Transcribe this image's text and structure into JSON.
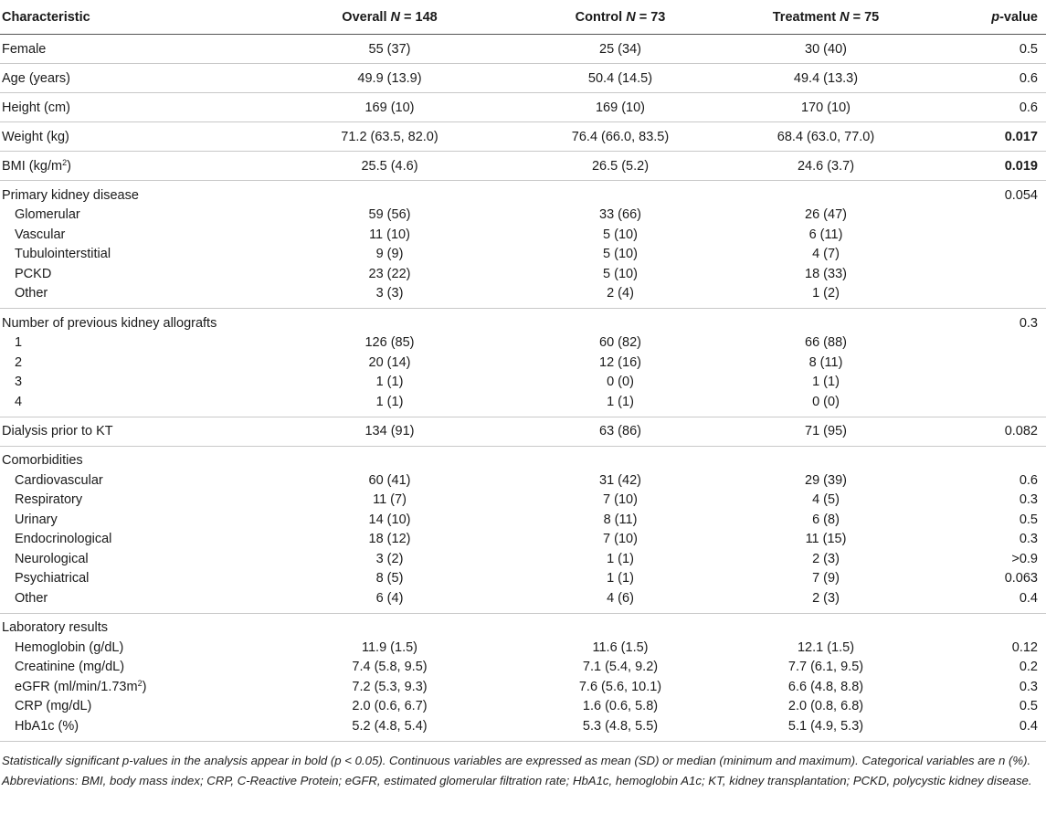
{
  "header": {
    "characteristic": "Characteristic",
    "overall_label": "Overall ",
    "overall_n": "N",
    "overall_count": " = 148",
    "control_label": "Control ",
    "control_n": "N",
    "control_count": " = 73",
    "treatment_label": "Treatment ",
    "treatment_n": "N",
    "treatment_count": " = 75",
    "p_italic": "p",
    "p_rest": "-value"
  },
  "basic_rows": [
    {
      "label": "Female",
      "overall": "55 (37)",
      "control": "25 (34)",
      "treatment": "30 (40)",
      "p": "0.5",
      "bold": false
    },
    {
      "label": "Age (years)",
      "overall": "49.9 (13.9)",
      "control": "50.4 (14.5)",
      "treatment": "49.4 (13.3)",
      "p": "0.6",
      "bold": false
    },
    {
      "label": "Height (cm)",
      "overall": "169 (10)",
      "control": "169 (10)",
      "treatment": "170 (10)",
      "p": "0.6",
      "bold": false
    },
    {
      "label": "Weight (kg)",
      "overall": "71.2 (63.5, 82.0)",
      "control": "76.4 (66.0, 83.5)",
      "treatment": "68.4 (63.0, 77.0)",
      "p": "0.017",
      "bold": true
    }
  ],
  "bmi_row": {
    "label": "BMI (kg/m",
    "sup": "2",
    "label_end": ")",
    "overall": "25.5 (4.6)",
    "control": "26.5 (5.2)",
    "treatment": "24.6 (3.7)",
    "p": "0.019"
  },
  "primary_kidney": {
    "label": "Primary kidney disease",
    "p": "0.054",
    "rows": [
      {
        "label": "Glomerular",
        "overall": "59 (56)",
        "control": "33 (66)",
        "treatment": "26 (47)"
      },
      {
        "label": "Vascular",
        "overall": "11 (10)",
        "control": "5 (10)",
        "treatment": "6 (11)"
      },
      {
        "label": "Tubulointerstitial",
        "overall": "9 (9)",
        "control": "5 (10)",
        "treatment": "4 (7)"
      },
      {
        "label": "PCKD",
        "overall": "23 (22)",
        "control": "5 (10)",
        "treatment": "18 (33)"
      },
      {
        "label": "Other",
        "overall": "3 (3)",
        "control": "2 (4)",
        "treatment": "1 (2)"
      }
    ]
  },
  "allografts": {
    "label": "Number of previous kidney allografts",
    "p": "0.3",
    "rows": [
      {
        "label": "1",
        "overall": "126 (85)",
        "control": "60 (82)",
        "treatment": "66 (88)"
      },
      {
        "label": "2",
        "overall": "20 (14)",
        "control": "12 (16)",
        "treatment": "8 (11)"
      },
      {
        "label": "3",
        "overall": "1 (1)",
        "control": "0 (0)",
        "treatment": "1 (1)"
      },
      {
        "label": "4",
        "overall": "1 (1)",
        "control": "1 (1)",
        "treatment": "0 (0)"
      }
    ]
  },
  "dialysis": {
    "label": "Dialysis prior to KT",
    "overall": "134 (91)",
    "control": "63 (86)",
    "treatment": "71 (95)",
    "p": "0.082"
  },
  "comorbidities": {
    "label": "Comorbidities",
    "rows": [
      {
        "label": "Cardiovascular",
        "overall": "60 (41)",
        "control": "31 (42)",
        "treatment": "29 (39)",
        "p": "0.6"
      },
      {
        "label": "Respiratory",
        "overall": "11 (7)",
        "control": "7 (10)",
        "treatment": "4 (5)",
        "p": "0.3"
      },
      {
        "label": "Urinary",
        "overall": "14 (10)",
        "control": "8 (11)",
        "treatment": "6 (8)",
        "p": "0.5"
      },
      {
        "label": "Endocrinological",
        "overall": "18 (12)",
        "control": "7 (10)",
        "treatment": "11 (15)",
        "p": "0.3"
      },
      {
        "label": "Neurological",
        "overall": "3 (2)",
        "control": "1 (1)",
        "treatment": "2 (3)",
        "p": ">0.9"
      },
      {
        "label": "Psychiatrical",
        "overall": "8 (5)",
        "control": "1 (1)",
        "treatment": "7 (9)",
        "p": "0.063"
      },
      {
        "label": "Other",
        "overall": "6 (4)",
        "control": "4 (6)",
        "treatment": "2 (3)",
        "p": "0.4"
      }
    ]
  },
  "lab": {
    "label": "Laboratory results",
    "hemoglobin": {
      "label": "Hemoglobin (g/dL)",
      "overall": "11.9 (1.5)",
      "control": "11.6 (1.5)",
      "treatment": "12.1 (1.5)",
      "p": "0.12"
    },
    "creatinine": {
      "label": "Creatinine (mg/dL)",
      "overall": "7.4 (5.8, 9.5)",
      "control": "7.1 (5.4, 9.2)",
      "treatment": "7.7 (6.1, 9.5)",
      "p": "0.2"
    },
    "egfr": {
      "label": "eGFR (ml/min/1.73m",
      "sup": "2",
      "label_end": ")",
      "overall": "7.2 (5.3, 9.3)",
      "control": "7.6 (5.6, 10.1)",
      "treatment": "6.6 (4.8, 8.8)",
      "p": "0.3"
    },
    "crp": {
      "label": "CRP (mg/dL)",
      "overall": "2.0 (0.6, 6.7)",
      "control": "1.6 (0.6, 5.8)",
      "treatment": "2.0 (0.8, 6.8)",
      "p": "0.5"
    },
    "hba1c": {
      "label": "HbA1c (%)",
      "overall": "5.2 (4.8, 5.4)",
      "control": "5.3 (4.8, 5.5)",
      "treatment": "5.1 (4.9, 5.3)",
      "p": "0.4"
    }
  },
  "footnotes": {
    "note1": "Statistically significant p-values in the analysis appear in bold (p < 0.05). Continuous variables are expressed as mean (SD) or median (minimum and maximum). Categorical variables are n (%).",
    "note2": "Abbreviations: BMI, body mass index; CRP, C-Reactive Protein; eGFR, estimated glomerular filtration rate; HbA1c, hemoglobin A1c; KT, kidney transplantation; PCKD, polycystic kidney disease."
  }
}
